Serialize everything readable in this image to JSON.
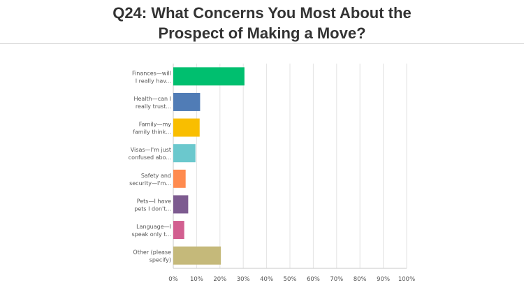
{
  "title": "Q24: What Concerns You Most About the Prospect of Making a Move?",
  "chart_data": {
    "type": "bar",
    "orientation": "horizontal",
    "title": "Q24: What Concerns You Most About the Prospect of Making a Move?",
    "categories": [
      [
        "Finances—will",
        "I really hav..."
      ],
      [
        "Health—can I",
        "really trust..."
      ],
      [
        "Family—my",
        "family think..."
      ],
      [
        "Visas—I'm just",
        "confused abo..."
      ],
      [
        "Safety and",
        "security—I'm..."
      ],
      [
        "Pets—I have",
        "pets I don't..."
      ],
      [
        "Language—I",
        "speak only t..."
      ],
      [
        "Other (please",
        "specify)"
      ]
    ],
    "values": [
      30.5,
      11.5,
      11.3,
      9.5,
      5.3,
      6.4,
      4.7,
      20.4
    ],
    "colors": [
      "#00bf6f",
      "#507cb6",
      "#f9be00",
      "#6bc8cd",
      "#ff8b4f",
      "#7d5b90",
      "#d25f90",
      "#c5b97a"
    ],
    "xlim": [
      0,
      100
    ],
    "x_ticks": [
      "0%",
      "10%",
      "20%",
      "30%",
      "40%",
      "50%",
      "60%",
      "70%",
      "80%",
      "90%",
      "100%"
    ],
    "grid": true,
    "xlabel": "",
    "ylabel": ""
  }
}
